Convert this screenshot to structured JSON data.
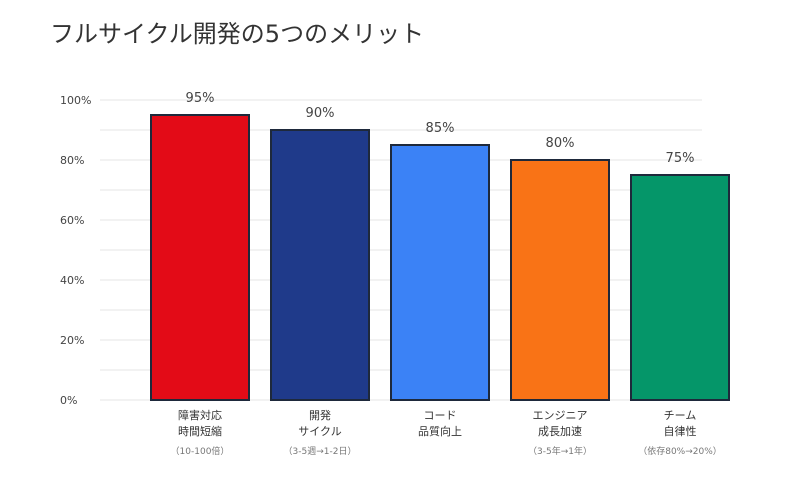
{
  "chart_data": {
    "type": "bar",
    "title": "フルサイクル開発の5つのメリット",
    "xlabel": "",
    "ylabel": "",
    "ylim": [
      0,
      100
    ],
    "yticks": [
      "0%",
      "20%",
      "40%",
      "60%",
      "80%",
      "100%"
    ],
    "grid": true,
    "legend": "none",
    "categories": [
      {
        "line1": "障害対応",
        "line2": "時間短縮",
        "note": "（10-100倍）"
      },
      {
        "line1": "開発",
        "line2": "サイクル",
        "note": "（3-5週→1-2日）"
      },
      {
        "line1": "コード",
        "line2": "品質向上",
        "note": ""
      },
      {
        "line1": "エンジニア",
        "line2": "成長加速",
        "note": "（3-5年→1年）"
      },
      {
        "line1": "チーム",
        "line2": "自律性",
        "note": "（依存80%→20%）"
      }
    ],
    "values": [
      95,
      90,
      85,
      80,
      75
    ],
    "value_labels": [
      "95%",
      "90%",
      "85%",
      "80%",
      "75%"
    ],
    "colors": [
      "#e30b17",
      "#1f3a8a",
      "#3b82f6",
      "#f97316",
      "#059669"
    ],
    "bar_outline": "#1e293b",
    "grid_color": "#e5e5e5",
    "tick_color": "#444444"
  }
}
